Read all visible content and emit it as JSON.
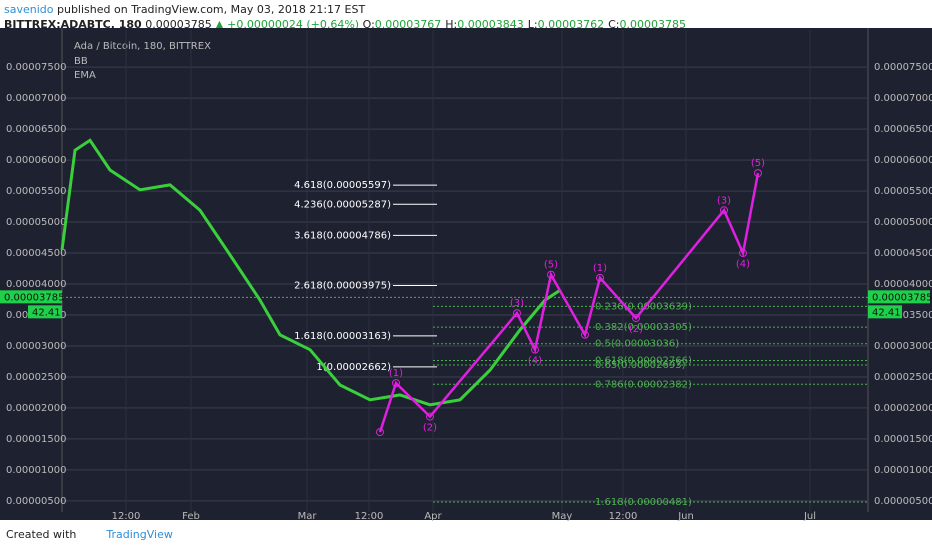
{
  "header": {
    "author": "savenido",
    "published": "published on TradingView.com, May 03, 2018 21:17 EST",
    "symbol": "BITTREX:ADABTC, 180",
    "last": "0.00003785",
    "arrow": "▲",
    "change": "+0.00000024 (+0.64%)",
    "ohlc": [
      {
        "key": "O:",
        "value": "0.00003767"
      },
      {
        "key": "H:",
        "value": "0.00003843"
      },
      {
        "key": "L:",
        "value": "0.00003762"
      },
      {
        "key": "C:",
        "value": "0.00003785"
      }
    ]
  },
  "chart_data": {
    "type": "line",
    "title": "Ada / Bitcoin, 180, BITTREX",
    "indicators": [
      "BB",
      "EMA"
    ],
    "xtick_labels": [
      "12:00",
      "Feb",
      "Mar",
      "12:00",
      "Apr",
      "May",
      "12:00",
      "Jun",
      "Jul"
    ],
    "ylim": [
      3.2e-06,
      8.1e-05
    ],
    "yticks": [
      {
        "value": 7.5e-05,
        "label": "0.00007500"
      },
      {
        "value": 7e-05,
        "label": "0.00007000"
      },
      {
        "value": 6.5e-05,
        "label": "0.00006500"
      },
      {
        "value": 6e-05,
        "label": "0.00006000"
      },
      {
        "value": 5.5e-05,
        "label": "0.00005500"
      },
      {
        "value": 5e-05,
        "label": "0.00005000"
      },
      {
        "value": 4.5e-05,
        "label": "0.00004500"
      },
      {
        "value": 4e-05,
        "label": "0.00004000"
      },
      {
        "value": 3.5e-05,
        "label": "0.00003500"
      },
      {
        "value": 3e-05,
        "label": "0.00003000"
      },
      {
        "value": 2.5e-05,
        "label": "0.00002500"
      },
      {
        "value": 2e-05,
        "label": "0.00002000"
      },
      {
        "value": 1.5e-05,
        "label": "0.00001500"
      },
      {
        "value": 1e-05,
        "label": "0.00001000"
      },
      {
        "value": 5e-06,
        "label": "0.00000500"
      }
    ],
    "grid": true,
    "last_price": {
      "value": 3.785e-05,
      "label": "0.00003785"
    },
    "indicator_value": "42.41",
    "fib_levels": [
      {
        "label": "4.618(0.00005597)",
        "value": 5.597e-05,
        "color": "#ffffff"
      },
      {
        "label": "4.236(0.00005287)",
        "value": 5.287e-05,
        "color": "#ffffff"
      },
      {
        "label": "3.618(0.00004786)",
        "value": 4.786e-05,
        "color": "#ffffff"
      },
      {
        "label": "2.618(0.00003975)",
        "value": 3.975e-05,
        "color": "#ffffff"
      },
      {
        "label": "1.618(0.00003163)",
        "value": 3.163e-05,
        "color": "#ffffff"
      },
      {
        "label": "1(0.00002662)",
        "value": 2.662e-05,
        "color": "#ffffff"
      },
      {
        "label": "0.236(0.00003639)",
        "value": 3.639e-05,
        "color": "#4caf50"
      },
      {
        "label": "0.382(0.00003305)",
        "value": 3.305e-05,
        "color": "#4caf50"
      },
      {
        "label": "0.5(0.00003036)",
        "value": 3.036e-05,
        "color": "#4caf50"
      },
      {
        "label": "0.618(0.00002766)",
        "value": 2.766e-05,
        "color": "#4caf50"
      },
      {
        "label": "0.65(0.00002693)",
        "value": 2.693e-05,
        "color": "#4caf50"
      },
      {
        "label": "0.786(0.00002382)",
        "value": 2.382e-05,
        "color": "#4caf50"
      },
      {
        "label": "1.618(0.00000481)",
        "value": 4.81e-06,
        "color": "#4caf50"
      }
    ],
    "series": [
      {
        "color": "#39d03c",
        "values": [
          4.55e-05,
          6.16e-05,
          6.32e-05,
          5.84e-05,
          5.52e-05,
          5.6e-05,
          5.19e-05,
          4.47e-05,
          3.74e-05,
          3.18e-05,
          2.94e-05,
          2.37e-05,
          2.13e-05,
          2.21e-05,
          2.05e-05,
          2.13e-05,
          2.61e-05,
          3.26e-05,
          3.74e-05,
          3.9e-05
        ]
      },
      {
        "color": "#e020e0",
        "values": [
          1.61e-05,
          2.4e-05,
          1.86e-05,
          3.53e-05,
          2.94e-05,
          4.15e-05,
          3.18e-05,
          4.1e-05,
          3.45e-05,
          5.19e-05,
          4.5e-05,
          5.79e-05
        ],
        "labels": [
          null,
          "(1)",
          "(2)",
          "(3)",
          "(4)",
          "(5)",
          null,
          "(1)",
          "(2)",
          "(3)",
          "(4)",
          "(5)"
        ]
      }
    ]
  },
  "footer": {
    "created": "Created with",
    "brand": "TradingView"
  }
}
